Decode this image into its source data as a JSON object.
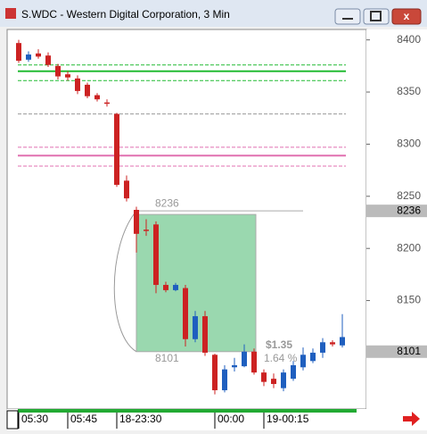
{
  "chart_data": {
    "type": "candlestick",
    "title": "S.WDC - Western Digital Corporation, 3 Min",
    "categories": [
      "05:30",
      null,
      null,
      null,
      null,
      "05:45",
      null,
      null,
      null,
      null,
      "18-23:30",
      null,
      null,
      null,
      null,
      null,
      null,
      null,
      null,
      null,
      "00:00",
      null,
      null,
      null,
      null,
      "19-00:15",
      null,
      null,
      null,
      null,
      null,
      null,
      null,
      null
    ],
    "open": [
      8397,
      8381,
      8387,
      8385,
      8375,
      8367,
      8363,
      8357,
      8347,
      8340,
      8329,
      8265,
      8237,
      8218,
      8223,
      8165,
      8160,
      8162,
      8113,
      8135,
      8098,
      8064,
      8086,
      8087,
      8101,
      8081,
      8075,
      8066,
      8075,
      8086,
      8092,
      8100,
      8110,
      8107
    ],
    "high": [
      8400,
      8389,
      8391,
      8388,
      8377,
      8370,
      8366,
      8359,
      8349,
      8343,
      8330,
      8270,
      8240,
      8228,
      8226,
      8168,
      8167,
      8165,
      8140,
      8140,
      8099,
      8088,
      8095,
      8108,
      8104,
      8084,
      8080,
      8084,
      8092,
      8105,
      8104,
      8114,
      8112,
      8137
    ],
    "low": [
      8378,
      8379,
      8382,
      8374,
      8362,
      8361,
      8348,
      8344,
      8341,
      8336,
      8259,
      8245,
      8196,
      8212,
      8157,
      8158,
      8159,
      8106,
      8110,
      8097,
      8060,
      8062,
      8082,
      8086,
      8079,
      8068,
      8066,
      8063,
      8073,
      8083,
      8090,
      8095,
      8106,
      8105
    ],
    "close": [
      8380,
      8386,
      8384,
      8376,
      8365,
      8364,
      8351,
      8346,
      8343,
      8339,
      8261,
      8248,
      8214,
      8217,
      8165,
      8160,
      8165,
      8113,
      8135,
      8100,
      8064,
      8084,
      8088,
      8101,
      8081,
      8072,
      8070,
      8081,
      8088,
      8098,
      8100,
      8110,
      8108,
      8115
    ],
    "up_color": "#1f5fbf",
    "down_color": "#cc2222",
    "ylim": [
      8046,
      8410
    ],
    "yticks": [
      8150,
      8200,
      8250,
      8300,
      8350,
      8400
    ],
    "price_markers": [
      8236,
      8101
    ],
    "levels": [
      {
        "value": 8376,
        "color": "#22bb33",
        "dashed": true
      },
      {
        "value": 8370,
        "color": "#22bb33",
        "dashed": false
      },
      {
        "value": 8361,
        "color": "#22bb33",
        "dashed": true
      },
      {
        "value": 8329,
        "color": "#999999",
        "dashed": true
      },
      {
        "value": 8297,
        "color": "#e070b0",
        "dashed": true
      },
      {
        "value": 8289,
        "color": "#e070b0",
        "dashed": false
      },
      {
        "value": 8279,
        "color": "#e070b0",
        "dashed": true
      }
    ],
    "measure": {
      "top": 8236,
      "bottom": 8101,
      "change": "$1.35",
      "percent": "1.64 %"
    }
  }
}
